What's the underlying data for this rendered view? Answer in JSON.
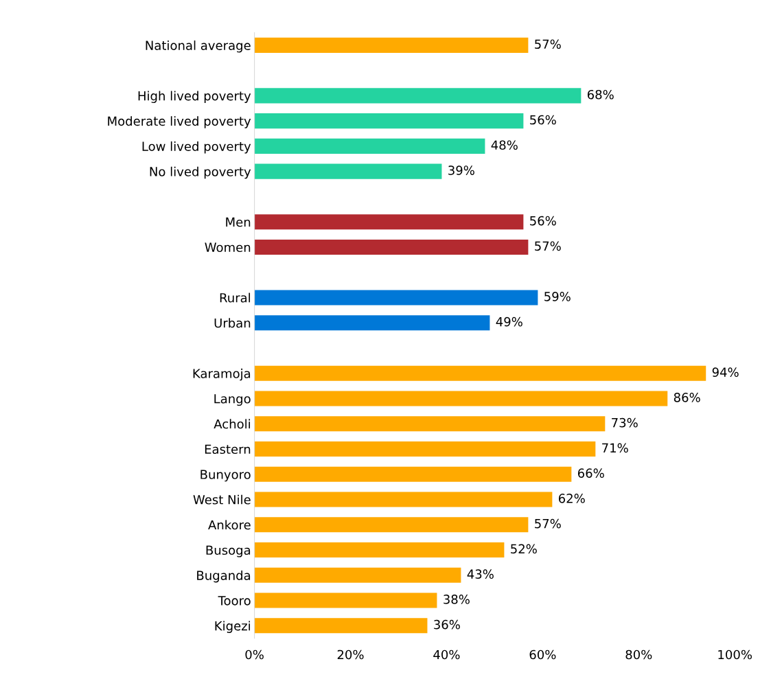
{
  "chart_data": {
    "type": "bar",
    "orientation": "horizontal",
    "categories": [
      "National average",
      null,
      "High lived poverty",
      "Moderate lived poverty",
      "Low lived poverty",
      "No lived poverty",
      null,
      "Men",
      "Women",
      null,
      "Rural",
      "Urban",
      null,
      "Karamoja",
      "Lango",
      "Acholi",
      "Eastern",
      "Bunyoro",
      "West Nile",
      "Ankore",
      "Busoga",
      "Buganda",
      "Tooro",
      "Kigezi"
    ],
    "values": [
      57,
      null,
      68,
      56,
      48,
      39,
      null,
      56,
      57,
      null,
      59,
      49,
      null,
      94,
      86,
      73,
      71,
      66,
      62,
      57,
      52,
      43,
      38,
      36
    ],
    "colors": [
      "#ffaa00",
      null,
      "#24d3a0",
      "#24d3a0",
      "#24d3a0",
      "#24d3a0",
      null,
      "#b32a30",
      "#b32a30",
      null,
      "#0078d7",
      "#0078d7",
      null,
      "#ffaa00",
      "#ffaa00",
      "#ffaa00",
      "#ffaa00",
      "#ffaa00",
      "#ffaa00",
      "#ffaa00",
      "#ffaa00",
      "#ffaa00",
      "#ffaa00",
      "#ffaa00"
    ],
    "value_labels": [
      "57%",
      null,
      "68%",
      "56%",
      "48%",
      "39%",
      null,
      "56%",
      "57%",
      null,
      "59%",
      "49%",
      null,
      "94%",
      "86%",
      "73%",
      "71%",
      "66%",
      "62%",
      "57%",
      "52%",
      "43%",
      "38%",
      "36%"
    ],
    "xlim": [
      0,
      100
    ],
    "xticks": [
      {
        "value": 0,
        "label": "0%"
      },
      {
        "value": 20,
        "label": "20%"
      },
      {
        "value": 40,
        "label": "40%"
      },
      {
        "value": 60,
        "label": "60%"
      },
      {
        "value": 80,
        "label": "80%"
      },
      {
        "value": 100,
        "label": "100%"
      }
    ],
    "grid": false,
    "legend": false
  }
}
